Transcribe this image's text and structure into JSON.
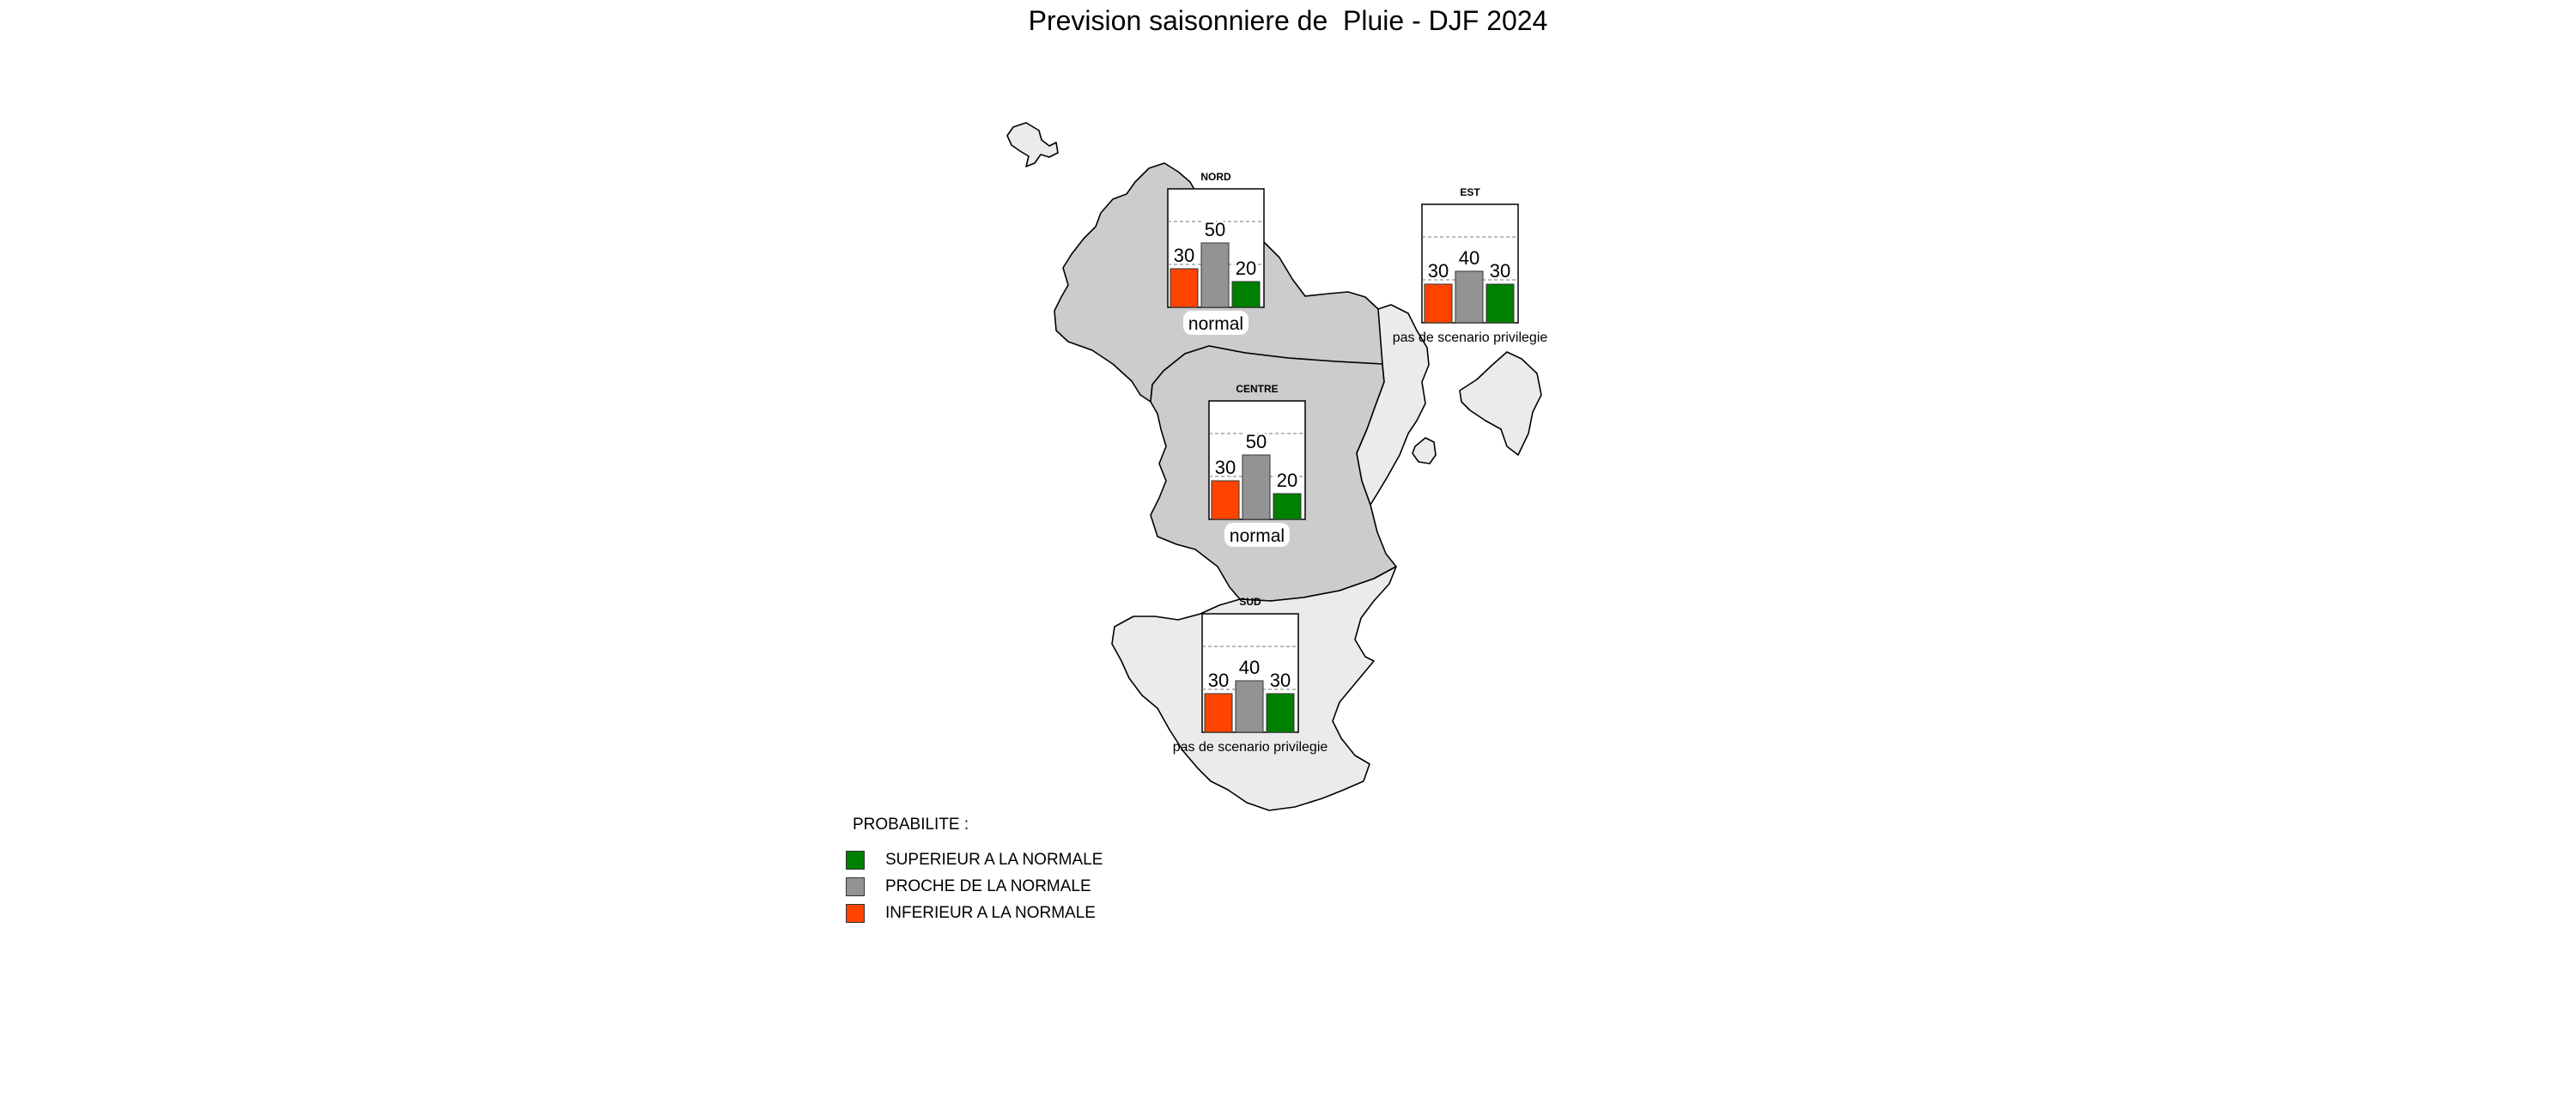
{
  "title": "Prevision saisonniere de  Pluie - DJF 2024",
  "colors": {
    "inferieur": "#ff4400",
    "proche": "#939393",
    "superieur": "#008000",
    "region_dark": "#cccccc",
    "region_light": "#ebebeb"
  },
  "legend": {
    "title": "PROBABILITE :",
    "items": [
      {
        "key": "superieur",
        "label": "SUPERIEUR A LA NORMALE",
        "color": "#008000"
      },
      {
        "key": "proche",
        "label": "PROCHE DE LA NORMALE",
        "color": "#939393"
      },
      {
        "key": "inferieur",
        "label": "INFERIEUR A LA NORMALE",
        "color": "#ff4400"
      }
    ]
  },
  "chart_data": [
    {
      "type": "bar",
      "title": "NORD",
      "categories": [
        "INFERIEUR A LA NORMALE",
        "PROCHE DE LA NORMALE",
        "SUPERIEUR A LA NORMALE"
      ],
      "values": [
        30,
        50,
        20
      ],
      "scenario": "normal"
    },
    {
      "type": "bar",
      "title": "EST",
      "categories": [
        "INFERIEUR A LA NORMALE",
        "PROCHE DE LA NORMALE",
        "SUPERIEUR A LA NORMALE"
      ],
      "values": [
        30,
        40,
        30
      ],
      "scenario": "pas de scenario privilegie"
    },
    {
      "type": "bar",
      "title": "CENTRE",
      "categories": [
        "INFERIEUR A LA NORMALE",
        "PROCHE DE LA NORMALE",
        "SUPERIEUR A LA NORMALE"
      ],
      "values": [
        30,
        50,
        20
      ],
      "scenario": "normal"
    },
    {
      "type": "bar",
      "title": "SUD",
      "categories": [
        "INFERIEUR A LA NORMALE",
        "PROCHE DE LA NORMALE",
        "SUPERIEUR A LA NORMALE"
      ],
      "values": [
        30,
        40,
        30
      ],
      "scenario": "pas de scenario privilegie"
    }
  ]
}
